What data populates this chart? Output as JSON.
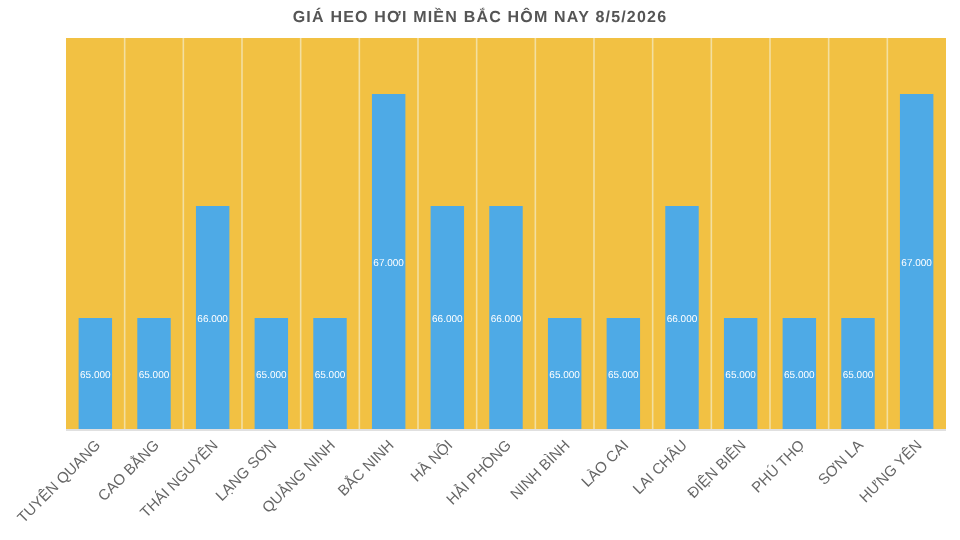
{
  "chart_data": {
    "type": "bar",
    "title": "GIÁ HEO HƠI MIỀN BẮC HÔM NAY 8/5/2026",
    "categories": [
      "TUYÊN QUANG",
      "CAO BẰNG",
      "THÁI NGUYÊN",
      "LẠNG SƠN",
      "QUẢNG NINH",
      "BẮC NINH",
      "HÀ NỘI",
      "HẢI PHÒNG",
      "NINH BÌNH",
      "LÀO CAI",
      "LAI CHÂU",
      "ĐIỆN BIÊN",
      "PHÚ THỌ",
      "SƠN LA",
      "HƯNG YÊN"
    ],
    "values": [
      65000,
      65000,
      66000,
      65000,
      65000,
      67000,
      66000,
      66000,
      65000,
      65000,
      66000,
      65000,
      65000,
      65000,
      67000
    ],
    "value_labels": [
      "65.000",
      "65.000",
      "66.000",
      "65.000",
      "65.000",
      "67.000",
      "66.000",
      "66.000",
      "65.000",
      "65.000",
      "66.000",
      "65.000",
      "65.000",
      "65.000",
      "67.000"
    ],
    "color": "#4eaae6",
    "ylim": [
      64000,
      67500
    ],
    "grid": "x",
    "tick_labels": "x"
  }
}
